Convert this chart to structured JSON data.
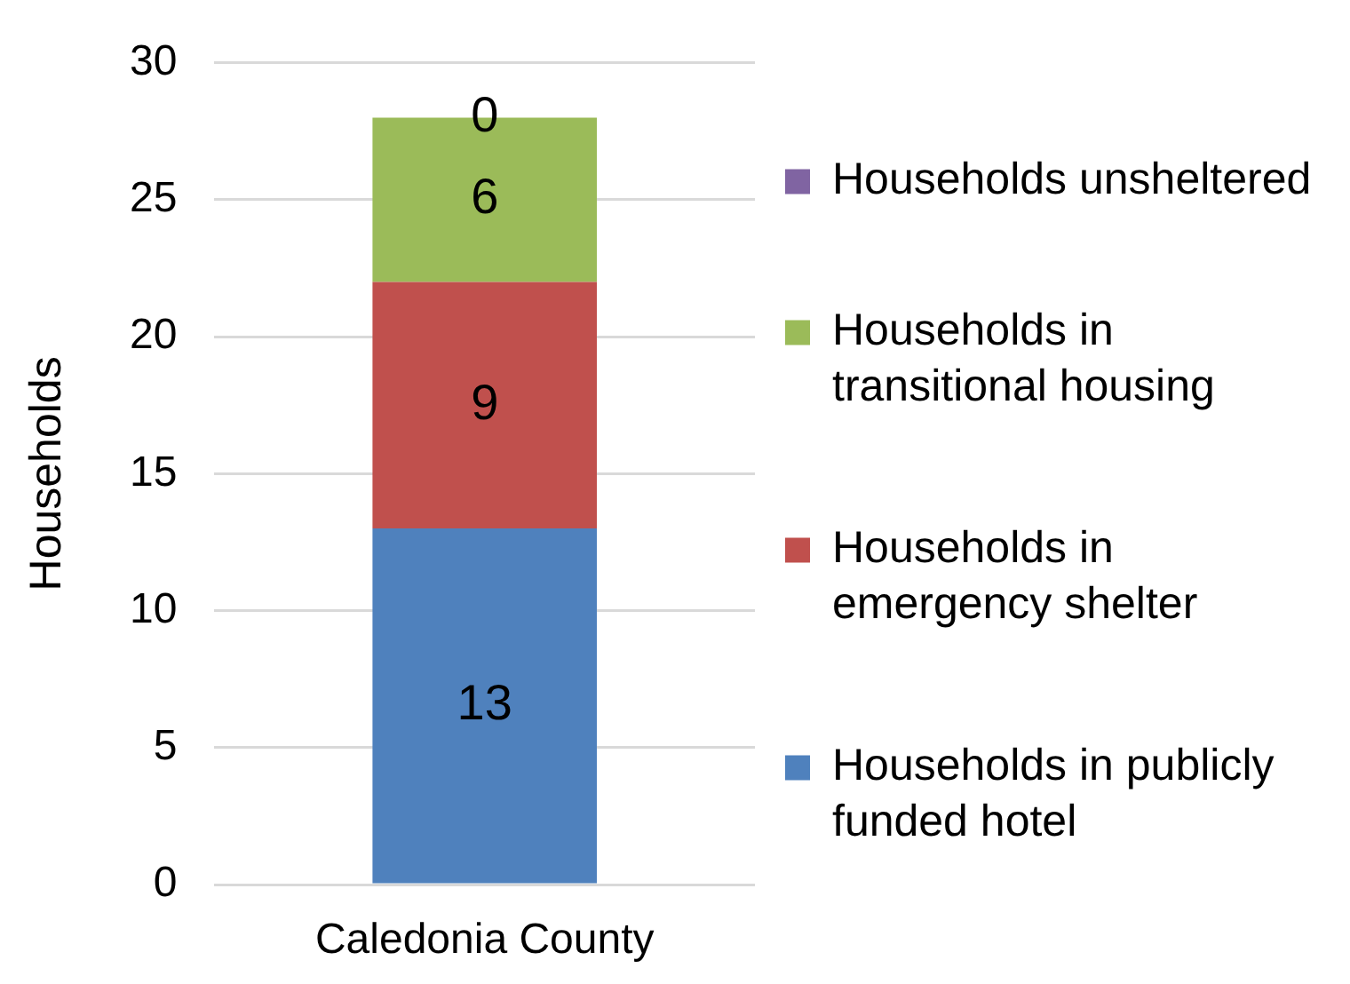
{
  "chart_data": {
    "type": "bar",
    "categories": [
      "Caledonia County"
    ],
    "ylabel": "Households",
    "stacked": true,
    "series": [
      {
        "name": "Households in publicly funded hotel",
        "color": "#4f81bd",
        "values": [
          13
        ]
      },
      {
        "name": "Households in emergency shelter",
        "color": "#c0504d",
        "values": [
          9
        ]
      },
      {
        "name": "Households in transitional housing",
        "color": "#9bbb59",
        "values": [
          6
        ]
      },
      {
        "name": "Households unsheltered",
        "color": "#8064a2",
        "values": [
          0
        ]
      }
    ],
    "ylim": [
      0,
      30
    ],
    "yticks": [
      0,
      5,
      10,
      15,
      20,
      25,
      30
    ],
    "grid": "y",
    "legend": "right",
    "data_labels": true
  }
}
